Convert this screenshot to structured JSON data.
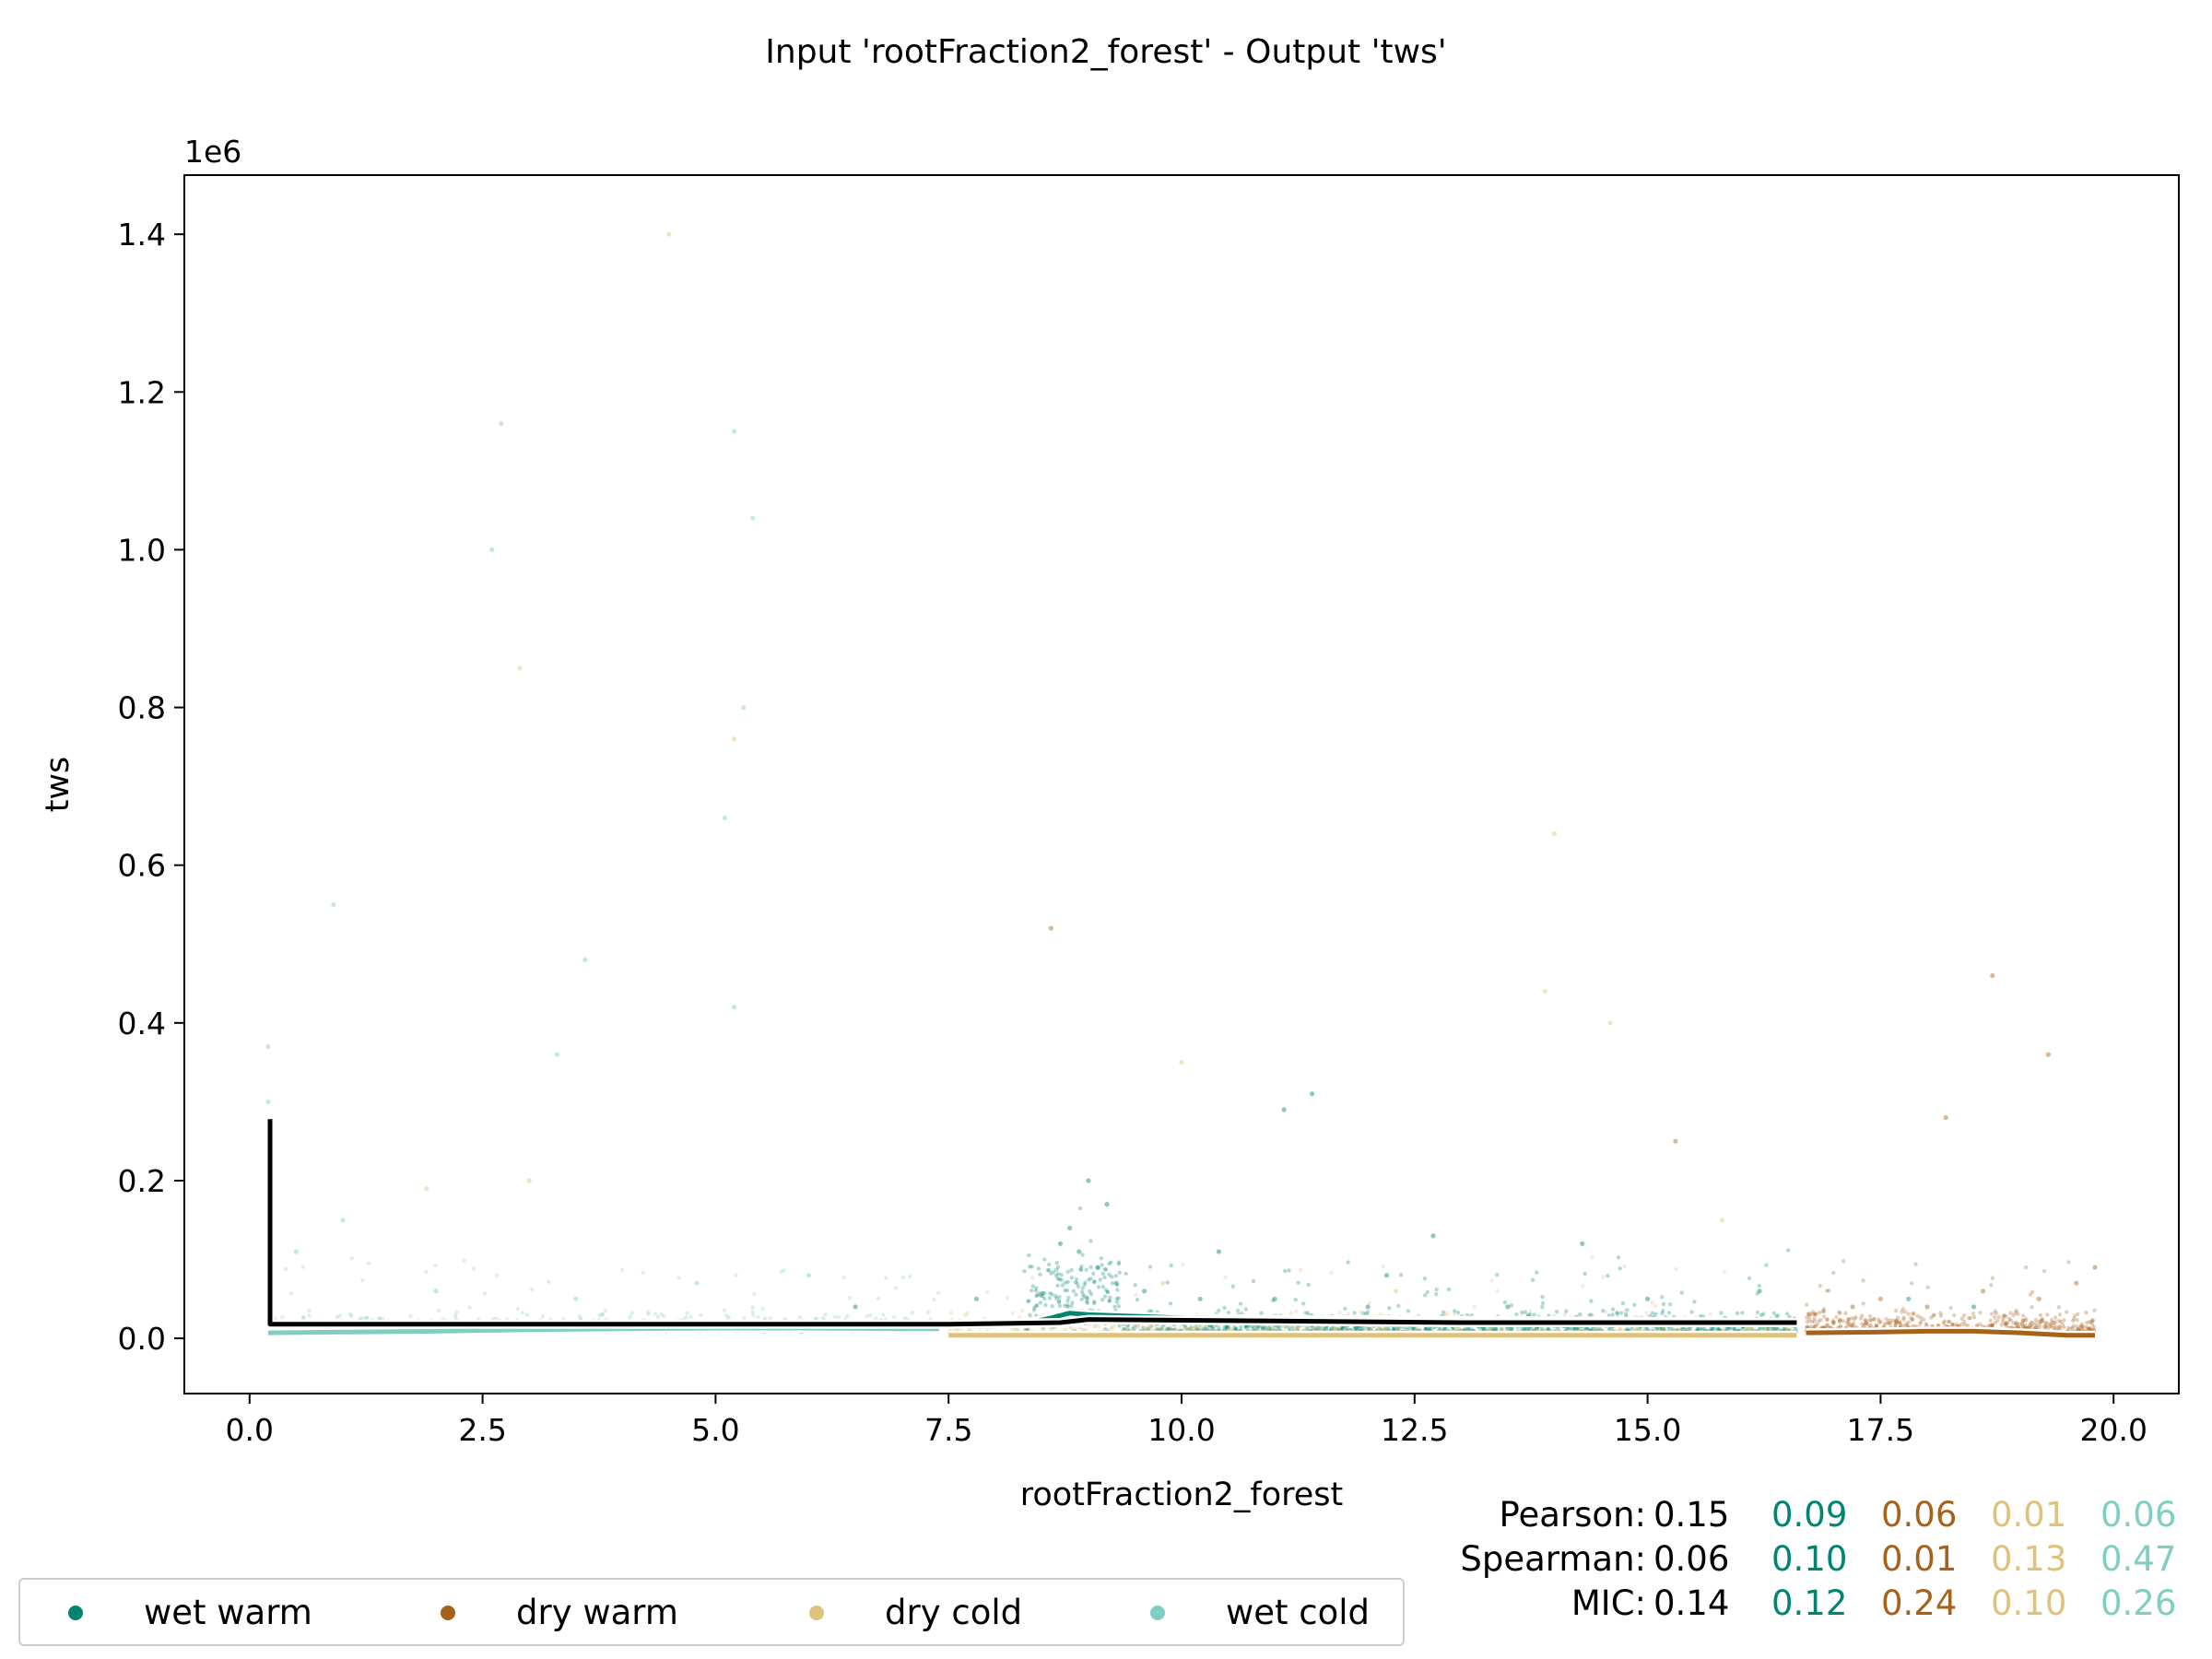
{
  "chart_data": {
    "type": "scatter",
    "title": "Input 'rootFraction2_forest' - Output 'tws'",
    "xlabel": "rootFraction2_forest",
    "ylabel": "tws",
    "y_offset_label": "1e6",
    "xlim": [
      -0.7,
      20.7
    ],
    "ylim": [
      -0.07,
      1.475
    ],
    "x_ticks": [
      0.0,
      2.5,
      5.0,
      7.5,
      10.0,
      12.5,
      15.0,
      17.5,
      20.0
    ],
    "x_tick_labels": [
      "0.0",
      "2.5",
      "5.0",
      "7.5",
      "10.0",
      "12.5",
      "15.0",
      "17.5",
      "20.0"
    ],
    "y_ticks": [
      0.0,
      0.2,
      0.4,
      0.6,
      0.8,
      1.0,
      1.2,
      1.4
    ],
    "y_tick_labels": [
      "0.0",
      "0.2",
      "0.4",
      "0.6",
      "0.8",
      "1.0",
      "1.2",
      "1.4"
    ],
    "grid": false,
    "legend_placement": "bottom-left",
    "series": [
      {
        "name": "wet warm",
        "color": "#018571",
        "trend_x": [
          8.3,
          8.6,
          8.8,
          9.0,
          9.5,
          10.0,
          11.0,
          12.5,
          14.0,
          15.5,
          16.6
        ],
        "trend_y": [
          0.018,
          0.026,
          0.032,
          0.03,
          0.028,
          0.026,
          0.024,
          0.023,
          0.022,
          0.021,
          0.02
        ],
        "scatter": [
          [
            8.8,
            0.14
          ],
          [
            8.9,
            0.11
          ],
          [
            9.1,
            0.09
          ],
          [
            8.7,
            0.12
          ],
          [
            9.3,
            0.07
          ],
          [
            9.6,
            0.06
          ],
          [
            10.2,
            0.05
          ],
          [
            11.0,
            0.05
          ],
          [
            12.0,
            0.04
          ],
          [
            13.5,
            0.04
          ],
          [
            15.0,
            0.05
          ],
          [
            16.2,
            0.06
          ],
          [
            9.0,
            0.2
          ],
          [
            11.4,
            0.31
          ],
          [
            11.1,
            0.29
          ],
          [
            10.4,
            0.11
          ],
          [
            12.7,
            0.13
          ],
          [
            14.3,
            0.12
          ],
          [
            7.8,
            0.05
          ],
          [
            6.5,
            0.04
          ],
          [
            17.8,
            0.05
          ],
          [
            18.5,
            0.04
          ],
          [
            9.2,
            0.17
          ],
          [
            12.2,
            0.08
          ]
        ]
      },
      {
        "name": "dry warm",
        "color": "#a6611a",
        "trend_x": [
          16.7,
          17.5,
          18.0,
          18.5,
          19.0,
          19.3,
          19.5,
          19.8
        ],
        "trend_y": [
          0.007,
          0.008,
          0.009,
          0.009,
          0.007,
          0.005,
          0.004,
          0.004
        ],
        "scatter": [
          [
            17.5,
            0.05
          ],
          [
            18.0,
            0.04
          ],
          [
            18.6,
            0.06
          ],
          [
            19.2,
            0.05
          ],
          [
            19.6,
            0.07
          ],
          [
            17.2,
            0.04
          ],
          [
            18.2,
            0.28
          ],
          [
            19.3,
            0.36
          ],
          [
            8.6,
            0.52
          ],
          [
            18.7,
            0.46
          ],
          [
            15.3,
            0.25
          ],
          [
            19.8,
            0.09
          ]
        ]
      },
      {
        "name": "dry cold",
        "color": "#dfc27d",
        "trend_x": [
          7.5,
          9.0,
          11.0,
          13.0,
          15.0,
          16.6
        ],
        "trend_y": [
          0.004,
          0.004,
          0.004,
          0.004,
          0.004,
          0.004
        ],
        "scatter": [
          [
            2.9,
            0.85
          ],
          [
            14.0,
            0.64
          ],
          [
            10.0,
            0.35
          ],
          [
            13.9,
            0.44
          ],
          [
            5.2,
            0.76
          ],
          [
            1.9,
            0.19
          ],
          [
            4.5,
            1.4
          ],
          [
            12.3,
            0.06
          ],
          [
            15.8,
            0.15
          ],
          [
            9.8,
            0.07
          ],
          [
            14.6,
            0.4
          ],
          [
            3.0,
            0.2
          ]
        ]
      },
      {
        "name": "wet cold",
        "color": "#80cdc1",
        "trend_x": [
          0.2,
          1.0,
          2.0,
          3.0,
          4.0,
          5.0,
          6.0,
          7.0,
          7.4
        ],
        "trend_y": [
          0.007,
          0.008,
          0.009,
          0.011,
          0.012,
          0.013,
          0.013,
          0.012,
          0.012
        ],
        "scatter": [
          [
            0.2,
            0.37
          ],
          [
            0.2,
            0.3
          ],
          [
            0.9,
            0.55
          ],
          [
            2.7,
            1.16
          ],
          [
            2.6,
            1.0
          ],
          [
            5.2,
            1.15
          ],
          [
            5.4,
            1.04
          ],
          [
            5.3,
            0.8
          ],
          [
            5.1,
            0.66
          ],
          [
            3.6,
            0.48
          ],
          [
            3.3,
            0.36
          ],
          [
            5.2,
            0.42
          ],
          [
            0.5,
            0.11
          ],
          [
            1.0,
            0.15
          ],
          [
            2.0,
            0.06
          ],
          [
            3.5,
            0.05
          ],
          [
            4.8,
            0.07
          ],
          [
            6.0,
            0.08
          ]
        ]
      },
      {
        "name": "",
        "color": "#000000",
        "trend_x": [
          0.22,
          0.22,
          7.5,
          8.7,
          9.0,
          11.0,
          13.0,
          16.6
        ],
        "trend_y": [
          0.278,
          0.018,
          0.018,
          0.02,
          0.024,
          0.022,
          0.02,
          0.02
        ]
      }
    ],
    "stats": {
      "rows": [
        {
          "label": "Pearson:",
          "all": "0.15",
          "values": [
            "0.09",
            "0.06",
            "0.01",
            "0.06"
          ]
        },
        {
          "label": "Spearman:",
          "all": "0.06",
          "values": [
            "0.10",
            "0.01",
            "0.13",
            "0.47"
          ]
        },
        {
          "label": "MIC:",
          "all": "0.14",
          "values": [
            "0.12",
            "0.24",
            "0.10",
            "0.26"
          ]
        }
      ]
    }
  }
}
